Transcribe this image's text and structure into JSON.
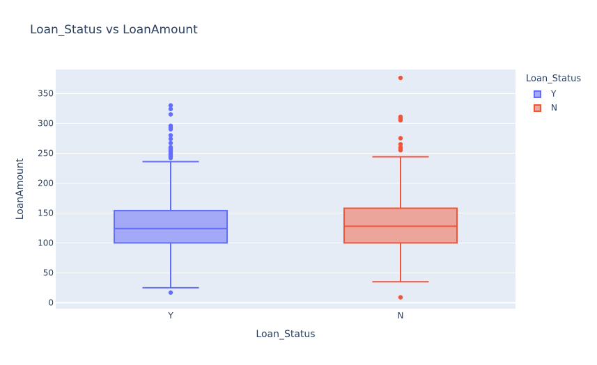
{
  "chart_data": {
    "type": "box",
    "title": "Loan_Status vs LoanAmount",
    "xlabel": "Loan_Status",
    "ylabel": "LoanAmount",
    "ylim": [
      -10,
      390
    ],
    "yticks": [
      0,
      50,
      100,
      150,
      200,
      250,
      300,
      350
    ],
    "grid": true,
    "legend_title": "Loan_Status",
    "legend_position": "top-right",
    "series": [
      {
        "name": "Y",
        "category": "Y",
        "color": "#636efa",
        "fill": "#a4a9f7",
        "whisker_low": 25,
        "q1": 100,
        "median": 124,
        "q3": 154,
        "whisker_high": 236,
        "outliers": [
          17,
          242,
          244,
          246,
          248,
          250,
          252,
          254,
          256,
          258,
          260,
          267,
          274,
          280,
          290,
          293,
          296,
          315,
          324,
          330
        ]
      },
      {
        "name": "N",
        "category": "N",
        "color": "#ef553b",
        "fill": "#eba59b",
        "whisker_low": 35,
        "q1": 100,
        "median": 128,
        "q3": 158,
        "whisker_high": 244,
        "outliers": [
          9,
          255,
          258,
          260,
          265,
          275,
          305,
          308,
          311,
          376
        ]
      }
    ]
  }
}
